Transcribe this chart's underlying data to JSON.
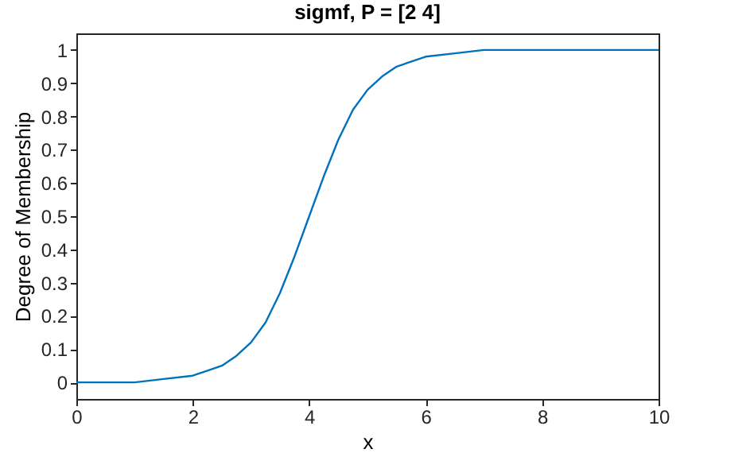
{
  "chart_data": {
    "type": "line",
    "title": "sigmf, P = [2 4]",
    "xlabel": "x",
    "ylabel": "Degree of Membership",
    "x": [
      0,
      0.5,
      1,
      1.5,
      2,
      2.5,
      2.75,
      3,
      3.25,
      3.5,
      3.75,
      4,
      4.25,
      4.5,
      4.75,
      5,
      5.25,
      5.5,
      6,
      6.5,
      7,
      8,
      9,
      10
    ],
    "series": [
      {
        "color": "#0072bd",
        "values": [
          0.0,
          0.0,
          0.0,
          0.01,
          0.02,
          0.05,
          0.08,
          0.12,
          0.18,
          0.27,
          0.38,
          0.5,
          0.62,
          0.73,
          0.82,
          0.88,
          0.92,
          0.95,
          0.98,
          0.99,
          1.0,
          1.0,
          1.0,
          1.0
        ]
      }
    ],
    "xlim": [
      0,
      10
    ],
    "xticks": [
      0,
      2,
      4,
      6,
      8,
      10
    ],
    "ylim": [
      -0.05,
      1.05
    ],
    "yticks": [
      0,
      0.1,
      0.2,
      0.3,
      0.4,
      0.5,
      0.6,
      0.7,
      0.8,
      0.9,
      1
    ],
    "grid": false,
    "legend": false,
    "marker": "none",
    "line_style": "solid"
  }
}
